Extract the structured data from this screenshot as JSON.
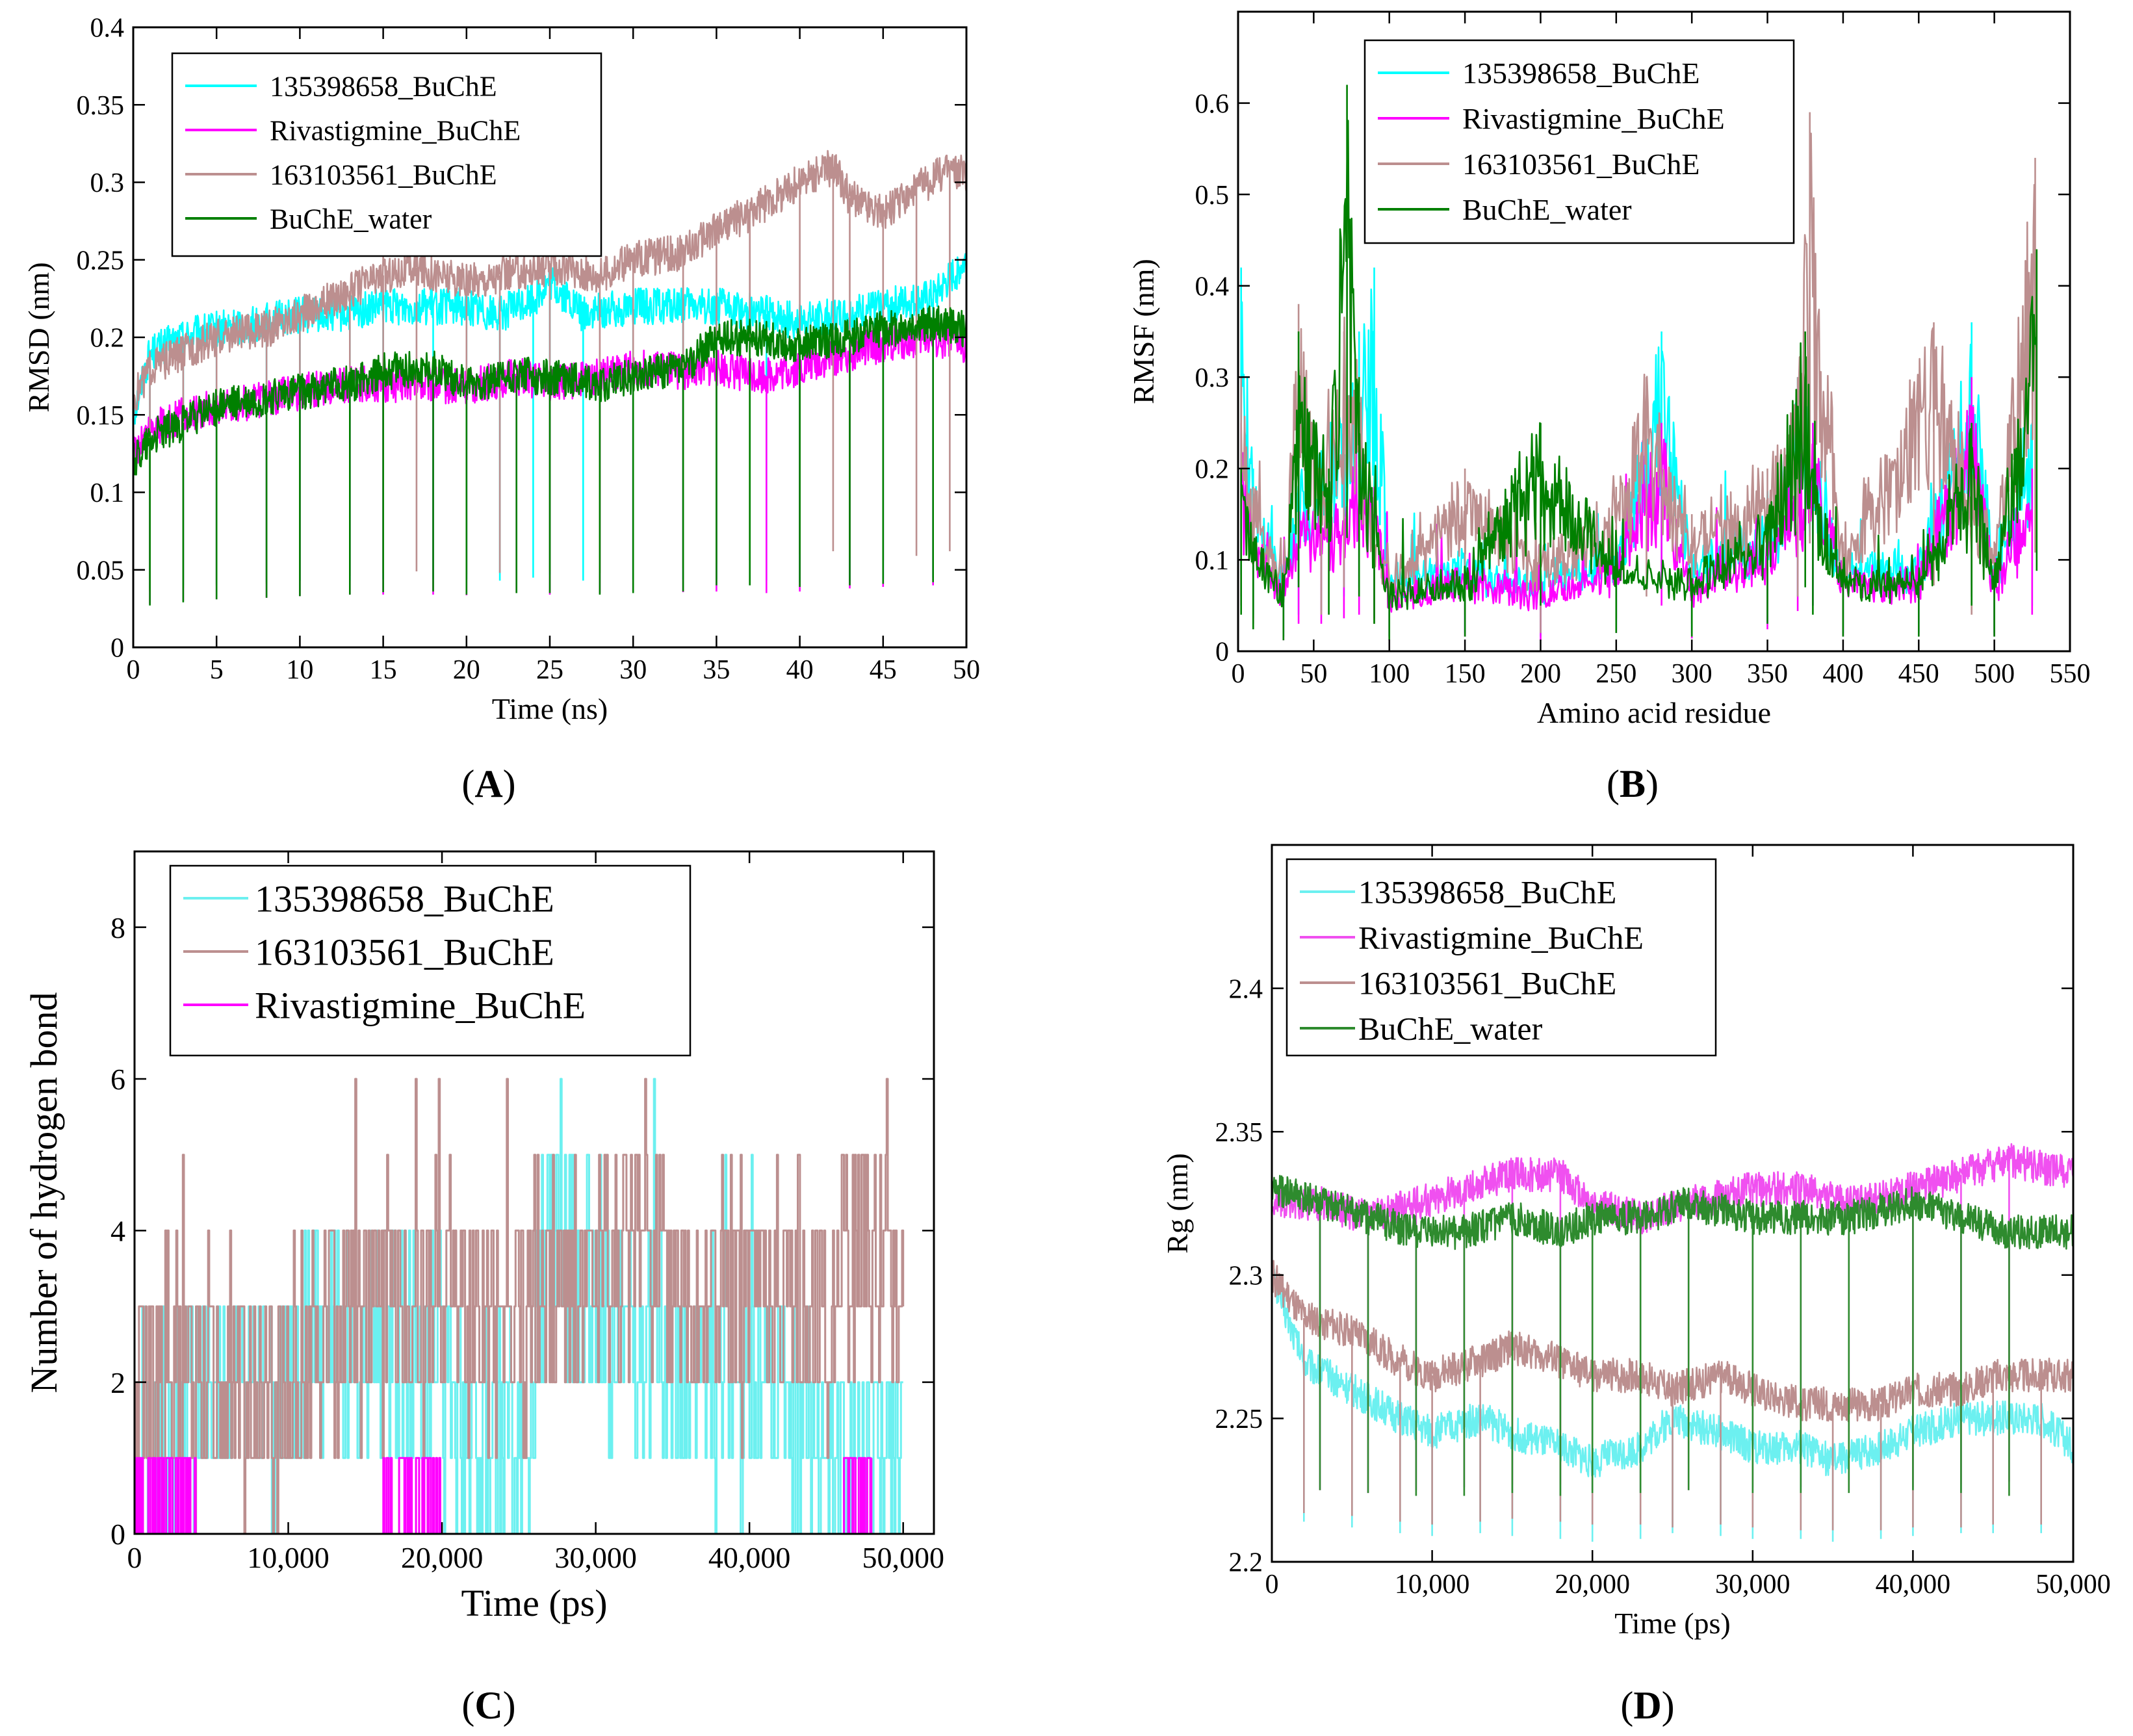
{
  "figure_captions": [
    "(A)",
    "(B)",
    "(C)",
    "(D)"
  ],
  "caption_letters": [
    "A",
    "B",
    "C",
    "D"
  ],
  "colors": {
    "cyan": "#00FFFF",
    "cyan_light": "#6CF0F0",
    "magenta": "#FF00FF",
    "magenta_light": "#F050F0",
    "brown": "#BC8F8F",
    "green": "#008000",
    "green_mid": "#2E8B2E"
  },
  "chart_data": [
    {
      "id": "A",
      "type": "line",
      "xlabel": "Time (ns)",
      "ylabel": "RMSD (nm)",
      "xlim": [
        0,
        50
      ],
      "ylim": [
        0,
        0.4
      ],
      "xticks": [
        0,
        5,
        10,
        15,
        20,
        25,
        30,
        35,
        40,
        45,
        50
      ],
      "xtick_labels": [
        "0",
        "5",
        "10",
        "15",
        "20",
        "25",
        "30",
        "35",
        "40",
        "45",
        "50"
      ],
      "yticks": [
        0,
        0.05,
        0.1,
        0.15,
        0.2,
        0.25,
        0.3,
        0.35,
        0.4
      ],
      "ytick_labels": [
        "0",
        "0.05",
        "0.1",
        "0.15",
        "0.2",
        "0.25",
        "0.3",
        "0.35",
        "0.4"
      ],
      "legend_position": "top-left",
      "series": [
        {
          "name": "135398658_BuChE",
          "color": "#00FFFF",
          "x": [
            0,
            1,
            3,
            5,
            8,
            10,
            13,
            15,
            18,
            20,
            22,
            24,
            25,
            27,
            30,
            33,
            35,
            38,
            40,
            43,
            45,
            48,
            50
          ],
          "values": [
            0.15,
            0.19,
            0.2,
            0.205,
            0.21,
            0.215,
            0.215,
            0.22,
            0.22,
            0.22,
            0.215,
            0.225,
            0.235,
            0.215,
            0.22,
            0.22,
            0.22,
            0.215,
            0.21,
            0.215,
            0.22,
            0.225,
            0.25
          ]
        },
        {
          "name": "Rivastigmine_BuChE",
          "color": "#FF00FF",
          "x": [
            0,
            1,
            3,
            5,
            8,
            10,
            13,
            15,
            18,
            20,
            23,
            25,
            28,
            30,
            33,
            35,
            38,
            40,
            43,
            45,
            48,
            50
          ],
          "values": [
            0.125,
            0.14,
            0.15,
            0.155,
            0.16,
            0.165,
            0.17,
            0.17,
            0.17,
            0.168,
            0.175,
            0.17,
            0.175,
            0.18,
            0.178,
            0.18,
            0.175,
            0.18,
            0.19,
            0.195,
            0.2,
            0.195
          ]
        },
        {
          "name": "163103561_BuChE",
          "color": "#BC8F8F",
          "x": [
            0,
            1,
            3,
            5,
            8,
            10,
            13,
            15,
            17,
            20,
            22,
            25,
            28,
            30,
            33,
            35,
            37,
            40,
            42,
            43,
            45,
            47,
            49,
            50
          ],
          "values": [
            0.16,
            0.18,
            0.19,
            0.2,
            0.205,
            0.215,
            0.23,
            0.24,
            0.245,
            0.235,
            0.24,
            0.245,
            0.24,
            0.25,
            0.255,
            0.27,
            0.28,
            0.3,
            0.31,
            0.29,
            0.28,
            0.295,
            0.31,
            0.305
          ]
        },
        {
          "name": "BuChE_water",
          "color": "#008000",
          "x": [
            0,
            1,
            3,
            5,
            8,
            10,
            13,
            15,
            18,
            20,
            23,
            25,
            28,
            30,
            33,
            35,
            37,
            40,
            43,
            45,
            48,
            50
          ],
          "values": [
            0.12,
            0.135,
            0.145,
            0.155,
            0.16,
            0.165,
            0.17,
            0.178,
            0.18,
            0.17,
            0.175,
            0.175,
            0.17,
            0.175,
            0.18,
            0.2,
            0.2,
            0.195,
            0.2,
            0.205,
            0.21,
            0.205
          ]
        }
      ]
    },
    {
      "id": "B",
      "type": "line",
      "xlabel": "Amino acid residue",
      "ylabel": "RMSF (nm)",
      "xlim": [
        0,
        550
      ],
      "ylim": [
        0,
        0.7
      ],
      "xticks": [
        0,
        50,
        100,
        150,
        200,
        250,
        300,
        350,
        400,
        450,
        500,
        550
      ],
      "xtick_labels": [
        "0",
        "50",
        "100",
        "150",
        "200",
        "250",
        "300",
        "350",
        "400",
        "450",
        "500",
        "550"
      ],
      "yticks": [
        0,
        0.1,
        0.2,
        0.3,
        0.4,
        0.5,
        0.6
      ],
      "ytick_labels": [
        "0",
        "0.1",
        "0.2",
        "0.3",
        "0.4",
        "0.5",
        "0.6"
      ],
      "legend_position": "top-center",
      "series": [
        {
          "name": "135398658_BuChE",
          "color": "#00FFFF",
          "x": [
            2,
            10,
            30,
            40,
            55,
            70,
            80,
            90,
            100,
            150,
            200,
            250,
            280,
            300,
            350,
            370,
            380,
            400,
            450,
            485,
            500,
            525
          ],
          "values": [
            0.42,
            0.2,
            0.08,
            0.2,
            0.22,
            0.3,
            0.35,
            0.42,
            0.08,
            0.1,
            0.08,
            0.12,
            0.35,
            0.1,
            0.15,
            0.3,
            0.25,
            0.1,
            0.1,
            0.36,
            0.1,
            0.25
          ]
        },
        {
          "name": "Rivastigmine_BuChE",
          "color": "#FF00FF",
          "x": [
            2,
            10,
            30,
            40,
            55,
            70,
            80,
            90,
            100,
            150,
            200,
            250,
            280,
            300,
            350,
            370,
            380,
            400,
            450,
            485,
            500,
            525
          ],
          "values": [
            0.25,
            0.15,
            0.06,
            0.15,
            0.15,
            0.18,
            0.2,
            0.18,
            0.06,
            0.08,
            0.06,
            0.1,
            0.25,
            0.07,
            0.12,
            0.22,
            0.25,
            0.08,
            0.08,
            0.3,
            0.08,
            0.2
          ]
        },
        {
          "name": "163103561_BuChE",
          "color": "#BC8F8F",
          "x": [
            2,
            10,
            30,
            40,
            55,
            70,
            80,
            90,
            100,
            150,
            200,
            250,
            270,
            300,
            350,
            370,
            378,
            400,
            460,
            485,
            500,
            527
          ],
          "values": [
            0.3,
            0.18,
            0.08,
            0.38,
            0.2,
            0.35,
            0.3,
            0.15,
            0.08,
            0.2,
            0.1,
            0.18,
            0.3,
            0.15,
            0.2,
            0.3,
            0.59,
            0.12,
            0.36,
            0.2,
            0.12,
            0.54
          ]
        },
        {
          "name": "BuChE_water",
          "color": "#008000",
          "x": [
            2,
            10,
            30,
            40,
            60,
            72,
            80,
            90,
            100,
            150,
            200,
            250,
            300,
            350,
            375,
            380,
            400,
            450,
            485,
            500,
            528
          ],
          "values": [
            0.2,
            0.12,
            0.06,
            0.35,
            0.2,
            0.62,
            0.3,
            0.15,
            0.06,
            0.08,
            0.25,
            0.1,
            0.08,
            0.15,
            0.35,
            0.2,
            0.08,
            0.08,
            0.25,
            0.08,
            0.44
          ]
        }
      ]
    },
    {
      "id": "C",
      "type": "line",
      "xlabel": "Time (ps)",
      "ylabel": "Number of hydrogen bond",
      "xlim": [
        0,
        52000
      ],
      "ylim": [
        0,
        9
      ],
      "xticks": [
        0,
        10000,
        20000,
        30000,
        40000,
        50000
      ],
      "xtick_labels": [
        "0",
        "10,000",
        "20,000",
        "30,000",
        "40,000",
        "50,000"
      ],
      "yticks": [
        0,
        2,
        4,
        6,
        8
      ],
      "ytick_labels": [
        "0",
        "2",
        "4",
        "6",
        "8"
      ],
      "legend_position": "top-left",
      "series": [
        {
          "name": "135398658_BuChE",
          "color": "#6CF0F0",
          "x": [
            0,
            5000,
            10000,
            15000,
            20000,
            25000,
            27000,
            30000,
            35000,
            40000,
            45000,
            50000
          ],
          "values": [
            1,
            2,
            2,
            3,
            2,
            1,
            4,
            3,
            2,
            2,
            1,
            1
          ]
        },
        {
          "name": "163103561_BuChE",
          "color": "#BC8F8F",
          "x": [
            0,
            5000,
            10000,
            15000,
            20000,
            25000,
            30000,
            33000,
            35000,
            40000,
            45000,
            47000,
            50000
          ],
          "values": [
            2,
            2,
            2,
            3,
            3,
            3,
            3,
            4,
            3,
            3,
            3,
            4,
            3
          ]
        },
        {
          "name": "Rivastigmine_BuChE",
          "color": "#FF00FF",
          "x": [
            0,
            4000,
            16000,
            20000,
            46000,
            48000
          ],
          "values": [
            1,
            1,
            1,
            1,
            1,
            1
          ]
        }
      ]
    },
    {
      "id": "D",
      "type": "line",
      "xlabel": "Time (ps)",
      "ylabel": "Rg (nm)",
      "xlim": [
        0,
        50000
      ],
      "ylim": [
        2.2,
        2.45
      ],
      "xticks": [
        0,
        10000,
        20000,
        30000,
        40000,
        50000
      ],
      "xtick_labels": [
        "0",
        "10,000",
        "20,000",
        "30,000",
        "40,000",
        "50,000"
      ],
      "yticks": [
        2.2,
        2.25,
        2.3,
        2.35,
        2.4
      ],
      "ytick_labels": [
        "2.2",
        "2.25",
        "2.3",
        "2.35",
        "2.4"
      ],
      "legend_position": "top-left",
      "series": [
        {
          "name": "135398658_BuChE",
          "color": "#6CF0F0",
          "x": [
            0,
            2000,
            5000,
            8000,
            10000,
            13000,
            15000,
            18000,
            20000,
            23000,
            25000,
            28000,
            30000,
            33000,
            35000,
            38000,
            40000,
            43000,
            45000,
            48000,
            50000
          ],
          "values": [
            2.3,
            2.27,
            2.26,
            2.25,
            2.245,
            2.25,
            2.245,
            2.24,
            2.235,
            2.24,
            2.25,
            2.245,
            2.24,
            2.24,
            2.235,
            2.24,
            2.245,
            2.25,
            2.25,
            2.25,
            2.24
          ]
        },
        {
          "name": "Rivastigmine_BuChE",
          "color": "#F050F0",
          "x": [
            0,
            3000,
            6000,
            9000,
            12000,
            15000,
            18000,
            20000,
            23000,
            26000,
            30000,
            33000,
            36000,
            40000,
            43000,
            46000,
            50000
          ],
          "values": [
            2.325,
            2.325,
            2.32,
            2.325,
            2.33,
            2.335,
            2.335,
            2.325,
            2.32,
            2.325,
            2.33,
            2.33,
            2.325,
            2.33,
            2.335,
            2.34,
            2.335
          ]
        },
        {
          "name": "163103561_BuChE",
          "color": "#BC8F8F",
          "x": [
            0,
            2000,
            5000,
            8000,
            10000,
            13000,
            15000,
            18000,
            20000,
            23000,
            25000,
            28000,
            30000,
            33000,
            35000,
            38000,
            40000,
            43000,
            45000,
            48000,
            50000
          ],
          "values": [
            2.3,
            2.285,
            2.28,
            2.27,
            2.265,
            2.27,
            2.275,
            2.27,
            2.265,
            2.265,
            2.26,
            2.265,
            2.26,
            2.255,
            2.255,
            2.255,
            2.26,
            2.26,
            2.265,
            2.265,
            2.265
          ]
        },
        {
          "name": "BuChE_water",
          "color": "#2E8B2E",
          "x": [
            0,
            3000,
            6000,
            9000,
            12000,
            15000,
            18000,
            20000,
            23000,
            26000,
            30000,
            33000,
            36000,
            40000,
            43000,
            46000,
            50000
          ],
          "values": [
            2.33,
            2.325,
            2.32,
            2.315,
            2.315,
            2.32,
            2.315,
            2.32,
            2.32,
            2.325,
            2.32,
            2.32,
            2.32,
            2.325,
            2.32,
            2.315,
            2.315
          ]
        }
      ]
    }
  ]
}
